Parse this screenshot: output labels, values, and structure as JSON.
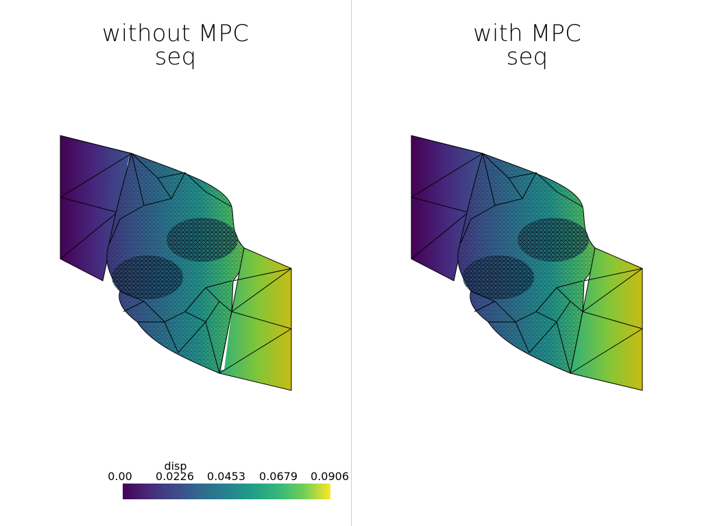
{
  "panels": [
    {
      "title_line1": "without MPC",
      "title_line2": "seq"
    },
    {
      "title_line1": "with MPC",
      "title_line2": "seq"
    }
  ],
  "colorbar": {
    "title": "disp",
    "ticks": [
      "0.00",
      "0.0226",
      "0.0453",
      "0.0679",
      "0.0906"
    ],
    "colormap": "viridis",
    "colors": [
      "#440154",
      "#3e4989",
      "#26828e",
      "#35b779",
      "#fde725"
    ]
  }
}
